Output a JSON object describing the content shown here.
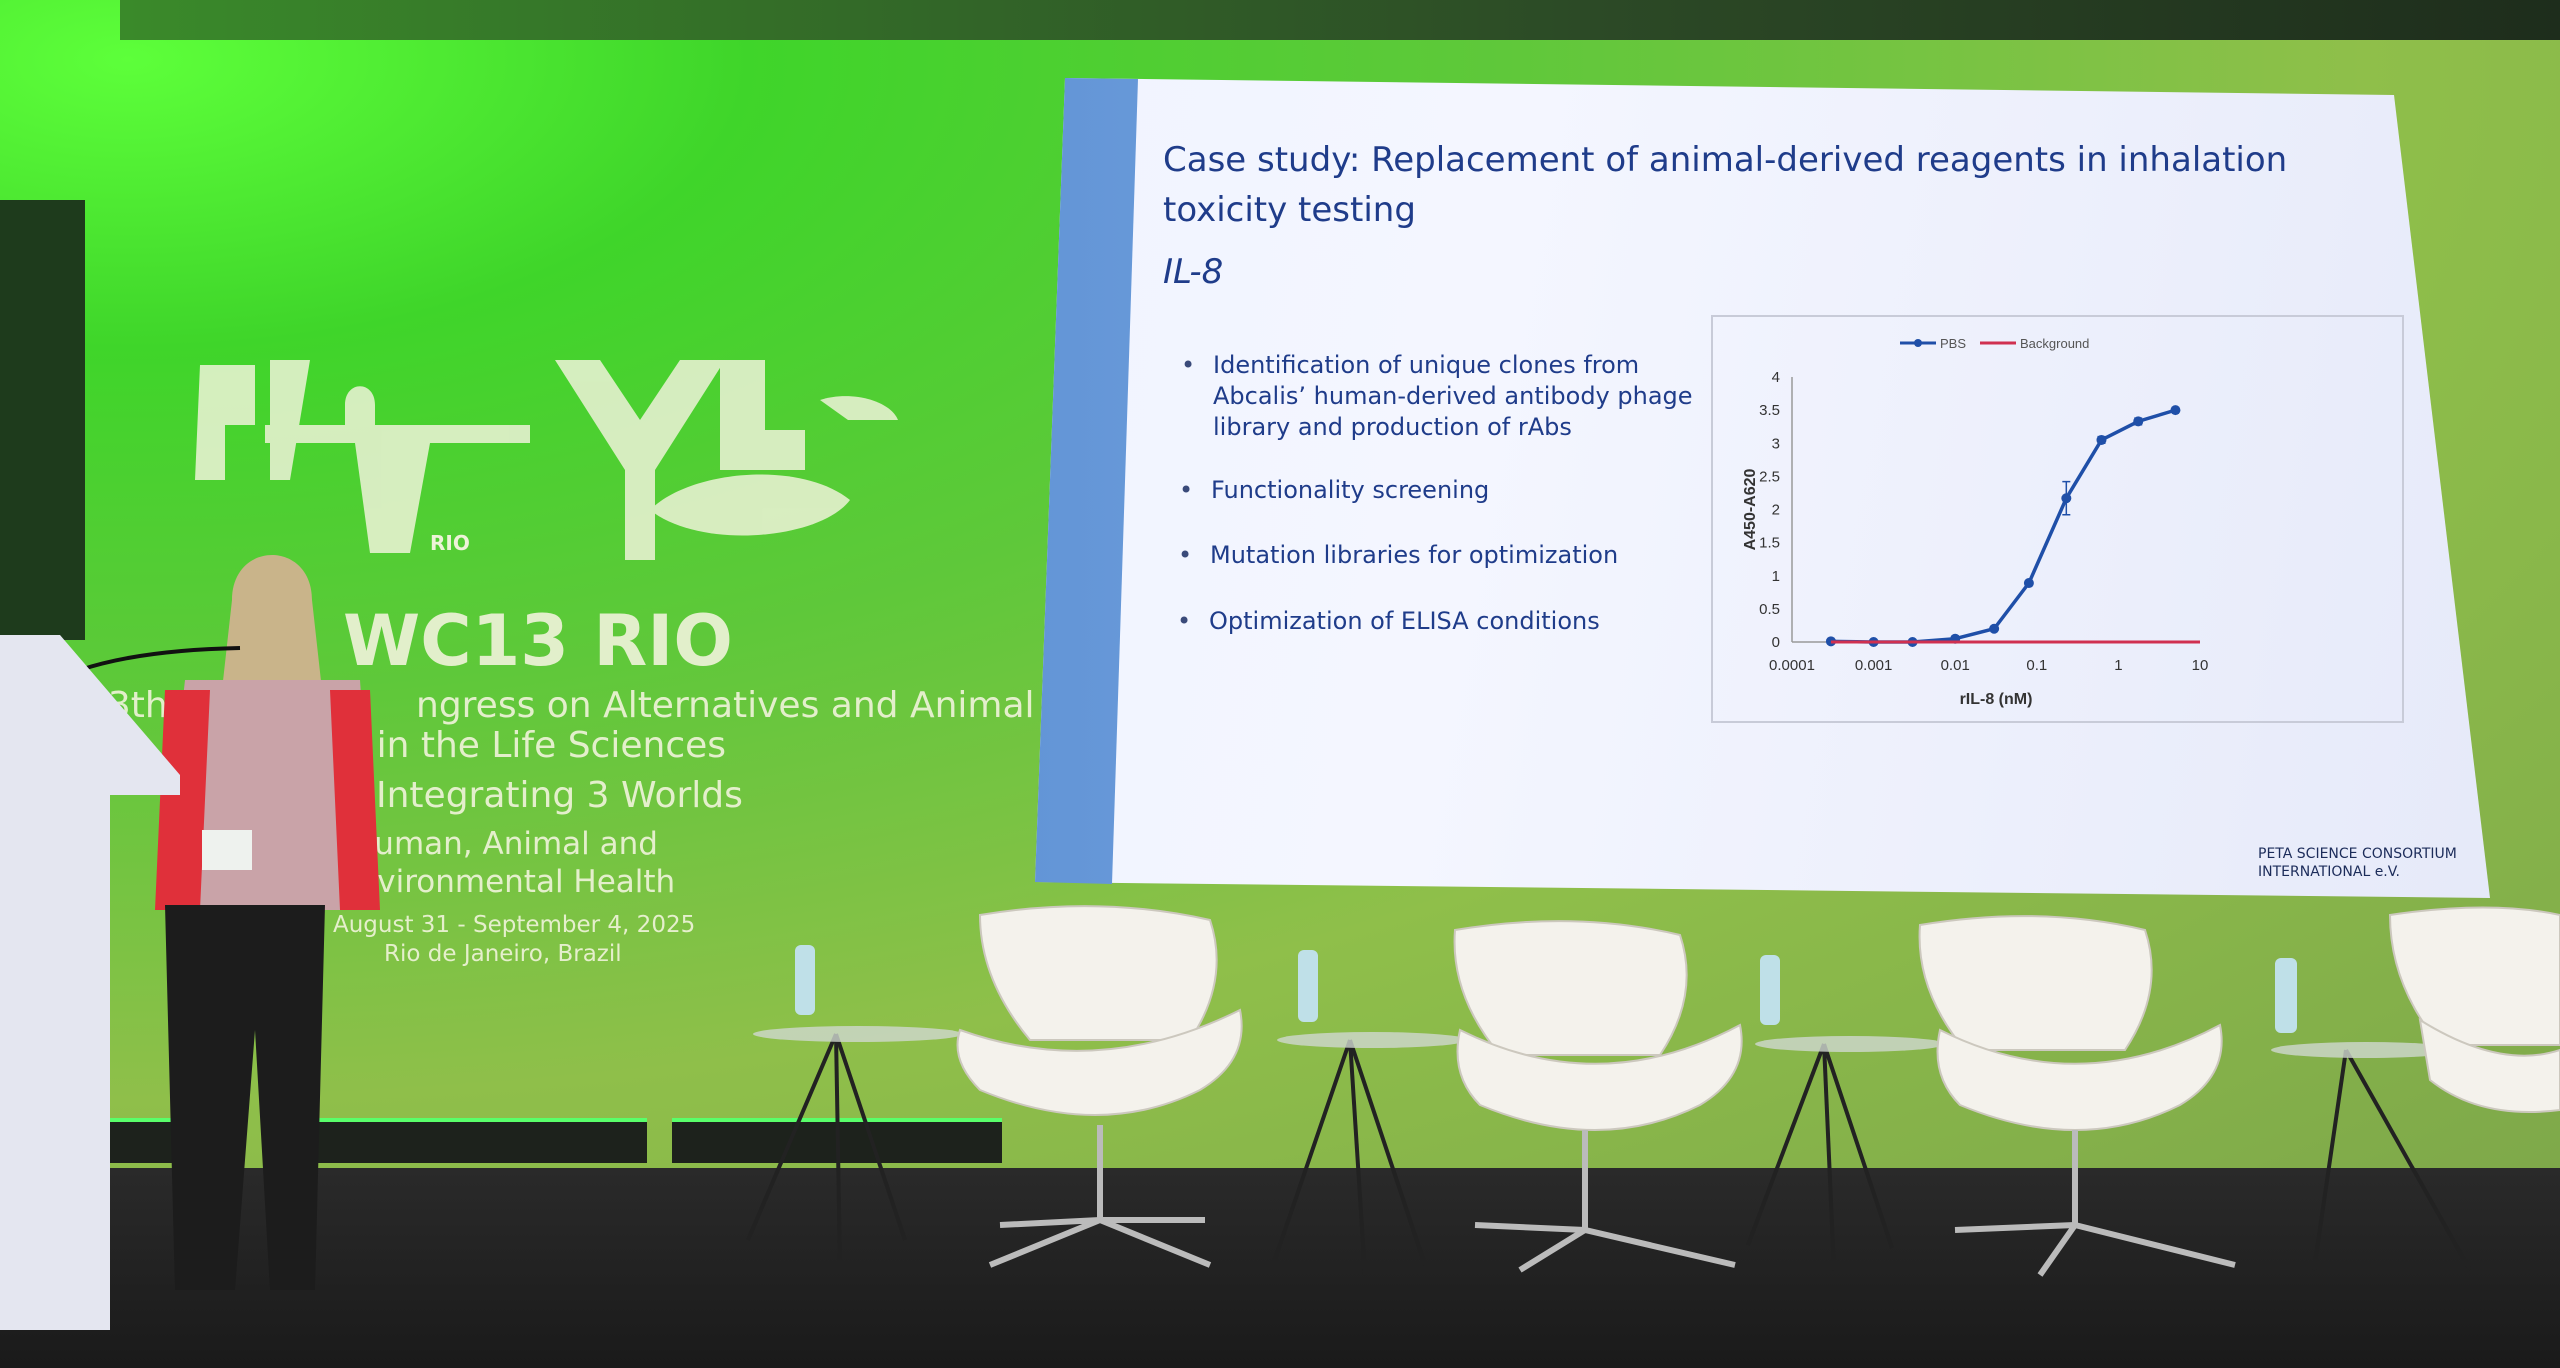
{
  "backdrop": {
    "logo_text": "RIO",
    "event_name": "WC13 RIO",
    "line1_left": "13th",
    "line1_right": "ngress on Alternatives and Animal",
    "line2": "e in the Life Sciences",
    "line3": "Integrating 3 Worlds",
    "line4": "Human, Animal and",
    "line5": "Environmental Health",
    "dates": "August 31 - September 4, 2025",
    "location": "Rio de Janeiro, Brazil"
  },
  "slide": {
    "title_line1": "Case study: Replacement of animal-derived reagents in inhalation",
    "title_line2": "toxicity testing",
    "subtitle": "IL-8",
    "bullets": [
      [
        "Identification of unique clones from",
        "Abcalis’ human-derived antibody phage",
        "library and production of rAbs"
      ],
      [
        "Functionality screening"
      ],
      [
        "Mutation libraries for optimization"
      ],
      [
        "Optimization of ELISA conditions"
      ]
    ],
    "footer_logo_line1": "PETA SCIENCE CONSORTIUM",
    "footer_logo_line2": "INTERNATIONAL e.V."
  },
  "chart_data": {
    "type": "line",
    "xlabel": "rIL-8 (nM)",
    "ylabel": "A450-A620",
    "xscale": "log",
    "xlim": [
      0.0001,
      10
    ],
    "ylim": [
      0,
      4
    ],
    "xticks": [
      "0.0001",
      "0.001",
      "0.01",
      "0.1",
      "1",
      "10"
    ],
    "yticks": [
      "0",
      "0.5",
      "1",
      "1.5",
      "2",
      "2.5",
      "3",
      "3.5",
      "4"
    ],
    "legend_position": "top",
    "grid": false,
    "series": [
      {
        "name": "PBS",
        "color": "#1f4fa8",
        "x": [
          0.0003,
          0.001,
          0.003,
          0.01,
          0.03,
          0.08,
          0.23,
          0.62,
          1.75,
          5
        ],
        "y": [
          0.01,
          0,
          0,
          0.05,
          0.2,
          0.89,
          2.17,
          3.05,
          3.33,
          3.5
        ],
        "error": [
          0,
          0,
          0,
          0,
          0,
          0,
          0.25,
          0.05,
          0.05,
          0
        ]
      },
      {
        "name": "Background",
        "color": "#d03050",
        "x": [
          0.0003,
          10
        ],
        "y": [
          0,
          0
        ]
      }
    ]
  }
}
